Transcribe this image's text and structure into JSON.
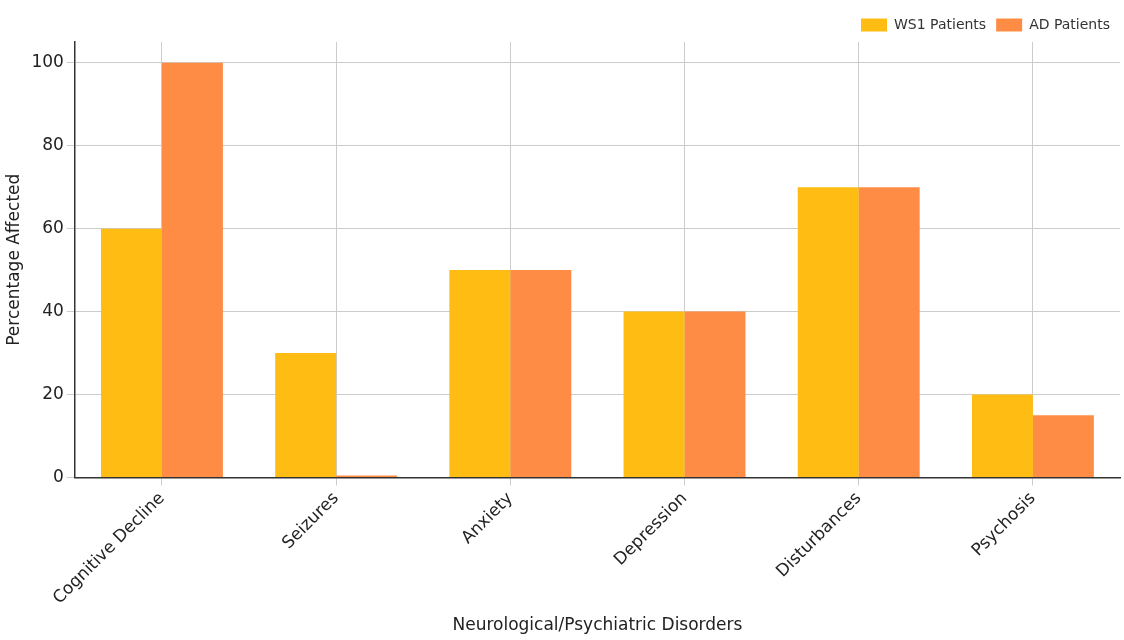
{
  "chart_data": {
    "type": "bar",
    "xlabel": "Neurological/Psychiatric Disorders",
    "ylabel": "Percentage Affected",
    "categories": [
      "Cognitive Decline",
      "Seizures",
      "Anxiety",
      "Depression",
      "Disturbances",
      "Psychosis"
    ],
    "series": [
      {
        "name": "WS1 Patients",
        "color": "#ffbc12",
        "values": [
          60,
          30,
          50,
          40,
          70,
          20
        ]
      },
      {
        "name": "AD Patients",
        "color": "#ff8c45",
        "values": [
          100,
          0.5,
          50,
          40,
          70,
          15
        ]
      }
    ],
    "ylim": [
      0,
      105
    ],
    "yticks": [
      0,
      20,
      40,
      60,
      80,
      100
    ],
    "grid": true,
    "legend": "top right"
  }
}
